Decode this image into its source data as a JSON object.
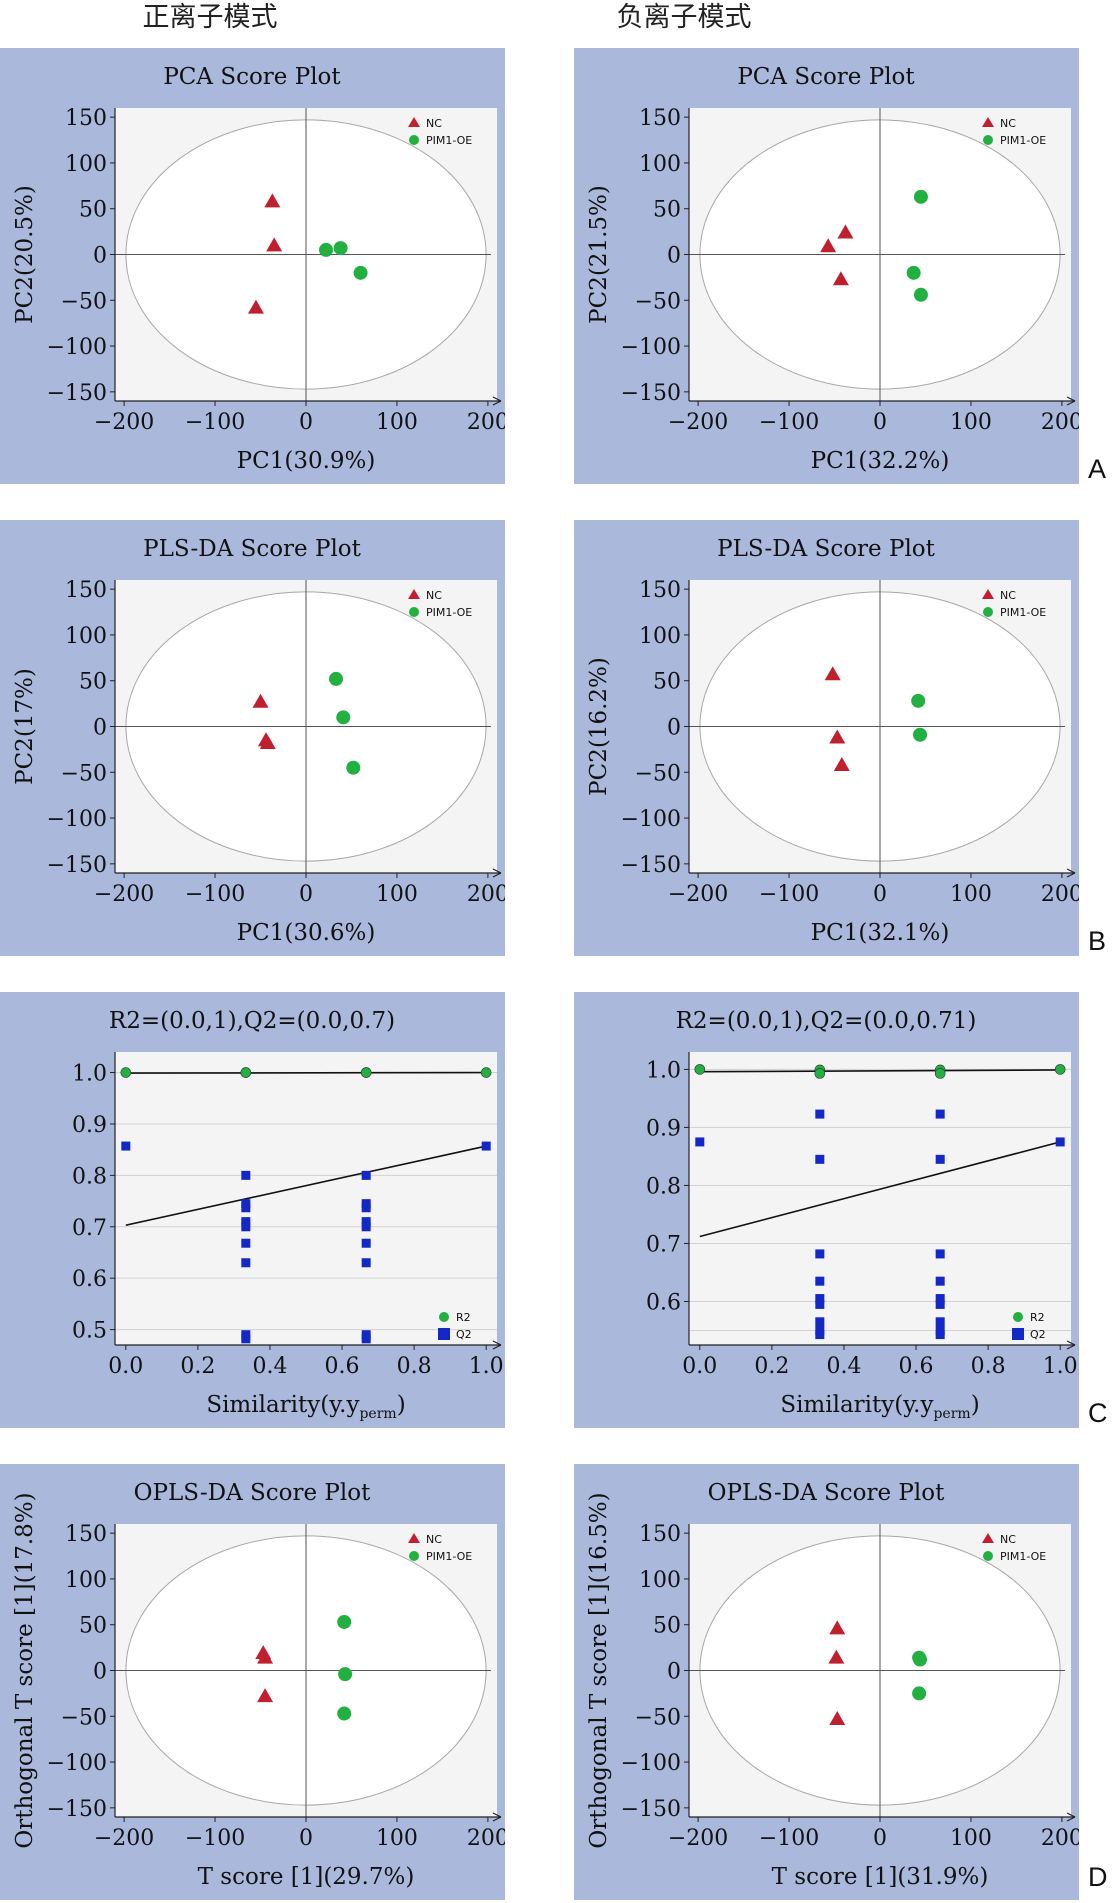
{
  "headers": {
    "left": "正离子模式",
    "right": "负离子模式"
  },
  "row_letters": [
    "A",
    "B",
    "C",
    "D"
  ],
  "colors": {
    "panel_bg": "#aab8dc",
    "plot_bg": "#f4f4f4",
    "nc": "#c0202e",
    "oe": "#22b040",
    "q2": "#1428c8"
  },
  "chart_data": [
    {
      "type": "scatter",
      "title": "PCA Score Plot",
      "xlabel": "PC1(30.9%)",
      "ylabel": "PC2(20.5%)",
      "xlim": [
        -210,
        210
      ],
      "ylim": [
        -160,
        160
      ],
      "xticks": [
        "−200",
        "−100",
        "0",
        "100",
        "200"
      ],
      "yticks": [
        "150",
        "100",
        "50",
        "0",
        "−50",
        "−100",
        "−150"
      ],
      "series": [
        {
          "name": "NC",
          "marker": "triangle",
          "points": [
            [
              -37,
              58
            ],
            [
              -35,
              10
            ],
            [
              -55,
              -58
            ]
          ]
        },
        {
          "name": "PIM1-OE",
          "marker": "circle",
          "points": [
            [
              22,
              5
            ],
            [
              38,
              7
            ],
            [
              60,
              -20
            ]
          ]
        }
      ]
    },
    {
      "type": "scatter",
      "title": "PCA Score Plot",
      "xlabel": "PC1(32.2%)",
      "ylabel": "PC2(21.5%)",
      "xlim": [
        -210,
        210
      ],
      "ylim": [
        -160,
        160
      ],
      "xticks": [
        "−200",
        "−100",
        "0",
        "100",
        "200"
      ],
      "yticks": [
        "150",
        "100",
        "50",
        "0",
        "−50",
        "−100",
        "−150"
      ],
      "series": [
        {
          "name": "NC",
          "marker": "triangle",
          "points": [
            [
              -38,
              24
            ],
            [
              -57,
              9
            ],
            [
              -43,
              -27
            ]
          ]
        },
        {
          "name": "PIM1-OE",
          "marker": "circle",
          "points": [
            [
              45,
              63
            ],
            [
              37,
              -20
            ],
            [
              45,
              -44
            ]
          ]
        }
      ]
    },
    {
      "type": "scatter",
      "title": "PLS-DA Score Plot",
      "xlabel": "PC1(30.6%)",
      "ylabel": "PC2(17%)",
      "xlim": [
        -210,
        210
      ],
      "ylim": [
        -160,
        160
      ],
      "xticks": [
        "−200",
        "−100",
        "0",
        "100",
        "200"
      ],
      "yticks": [
        "150",
        "100",
        "50",
        "0",
        "−50",
        "−100",
        "−150"
      ],
      "series": [
        {
          "name": "NC",
          "marker": "triangle",
          "points": [
            [
              -50,
              27
            ],
            [
              -44,
              -15
            ],
            [
              -42,
              -18
            ]
          ]
        },
        {
          "name": "PIM1-OE",
          "marker": "circle",
          "points": [
            [
              33,
              52
            ],
            [
              41,
              10
            ],
            [
              52,
              -45
            ]
          ]
        }
      ]
    },
    {
      "type": "scatter",
      "title": "PLS-DA Score Plot",
      "xlabel": "PC1(32.1%)",
      "ylabel": "PC2(16.2%)",
      "xlim": [
        -210,
        210
      ],
      "ylim": [
        -160,
        160
      ],
      "xticks": [
        "−200",
        "−100",
        "0",
        "100",
        "200"
      ],
      "yticks": [
        "150",
        "100",
        "50",
        "0",
        "−50",
        "−100",
        "−150"
      ],
      "series": [
        {
          "name": "NC",
          "marker": "triangle",
          "points": [
            [
              -52,
              57
            ],
            [
              -47,
              -12
            ],
            [
              -42,
              -42
            ]
          ]
        },
        {
          "name": "PIM1-OE",
          "marker": "circle",
          "points": [
            [
              42,
              28
            ],
            [
              44,
              -9
            ]
          ]
        }
      ]
    },
    {
      "type": "scatter",
      "title": "R2=(0.0,1),Q2=(0.0,0.7)",
      "xlabel": "Similarity(y.y",
      "xlabel_sub": "perm",
      "xlabel_end": ")",
      "xlim": [
        -0.03,
        1.03
      ],
      "ylim": [
        0.47,
        1.04
      ],
      "xticks": [
        "0.0",
        "0.2",
        "0.4",
        "0.6",
        "0.8",
        "1.0"
      ],
      "yticks": [
        "1.0",
        "0.9",
        "0.8",
        "0.7",
        "0.6",
        "0.5"
      ],
      "yticks_values": [
        1.0,
        0.9,
        0.8,
        0.7,
        0.6,
        0.5
      ],
      "gridlines": [
        1.0,
        0.9,
        0.8,
        0.7,
        0.6,
        0.5
      ],
      "series": [
        {
          "name": "R2",
          "marker": "circle",
          "points": [
            [
              0,
              1.0
            ],
            [
              0.333,
              1.0
            ],
            [
              0.333,
              1.0
            ],
            [
              0.667,
              1.0
            ],
            [
              0.667,
              1.0
            ],
            [
              1.0,
              1.0
            ]
          ]
        },
        {
          "name": "Q2",
          "marker": "square",
          "points": [
            [
              0,
              0.857
            ],
            [
              0.333,
              0.8
            ],
            [
              0.333,
              0.745
            ],
            [
              0.333,
              0.737
            ],
            [
              0.333,
              0.71
            ],
            [
              0.333,
              0.7
            ],
            [
              0.333,
              0.668
            ],
            [
              0.333,
              0.63
            ],
            [
              0.333,
              0.49
            ],
            [
              0.333,
              0.482
            ],
            [
              0.667,
              0.8
            ],
            [
              0.667,
              0.745
            ],
            [
              0.667,
              0.737
            ],
            [
              0.667,
              0.71
            ],
            [
              0.667,
              0.7
            ],
            [
              0.667,
              0.668
            ],
            [
              0.667,
              0.63
            ],
            [
              0.667,
              0.49
            ],
            [
              0.667,
              0.482
            ],
            [
              1.0,
              0.857
            ]
          ]
        }
      ],
      "regression": [
        {
          "from": [
            0,
            0.999
          ],
          "to": [
            1.0,
            1.0
          ]
        },
        {
          "from": [
            0,
            0.703
          ],
          "to": [
            1.0,
            0.857
          ]
        }
      ]
    },
    {
      "type": "scatter",
      "title": "R2=(0.0,1),Q2=(0.0,0.71)",
      "xlabel": "Similarity(y.y",
      "xlabel_sub": "perm",
      "xlabel_end": ")",
      "xlim": [
        -0.03,
        1.03
      ],
      "ylim": [
        0.525,
        1.03
      ],
      "xticks": [
        "0.0",
        "0.2",
        "0.4",
        "0.6",
        "0.8",
        "1.0"
      ],
      "yticks": [
        "1.0",
        "0.9",
        "0.8",
        "0.7",
        "0.6"
      ],
      "yticks_values": [
        1.0,
        0.9,
        0.8,
        0.7,
        0.6
      ],
      "gridlines": [
        1.0,
        0.9,
        0.8,
        0.7,
        0.6,
        0.55
      ],
      "series": [
        {
          "name": "R2",
          "marker": "circle",
          "points": [
            [
              0,
              1.0
            ],
            [
              0.333,
              0.999
            ],
            [
              0.333,
              0.993
            ],
            [
              0.667,
              0.999
            ],
            [
              0.667,
              0.993
            ],
            [
              1.0,
              1.0
            ]
          ]
        },
        {
          "name": "Q2",
          "marker": "square",
          "points": [
            [
              0,
              0.875
            ],
            [
              0.333,
              0.923
            ],
            [
              0.333,
              0.845
            ],
            [
              0.333,
              0.682
            ],
            [
              0.333,
              0.635
            ],
            [
              0.333,
              0.605
            ],
            [
              0.333,
              0.595
            ],
            [
              0.333,
              0.565
            ],
            [
              0.333,
              0.55
            ],
            [
              0.333,
              0.543
            ],
            [
              0.667,
              0.923
            ],
            [
              0.667,
              0.845
            ],
            [
              0.667,
              0.682
            ],
            [
              0.667,
              0.635
            ],
            [
              0.667,
              0.605
            ],
            [
              0.667,
              0.595
            ],
            [
              0.667,
              0.565
            ],
            [
              0.667,
              0.55
            ],
            [
              0.667,
              0.543
            ],
            [
              1.0,
              0.875
            ]
          ]
        }
      ],
      "regression": [
        {
          "from": [
            0,
            0.996
          ],
          "to": [
            1.0,
            0.999
          ]
        },
        {
          "from": [
            0,
            0.712
          ],
          "to": [
            1.0,
            0.875
          ]
        }
      ]
    },
    {
      "type": "scatter",
      "title": "OPLS-DA Score Plot",
      "xlabel": "T score [1](29.7%)",
      "ylabel": "Orthogonal T score [1](17.8%)",
      "xlim": [
        -210,
        210
      ],
      "ylim": [
        -160,
        160
      ],
      "xticks": [
        "−200",
        "−100",
        "0",
        "100",
        "200"
      ],
      "yticks": [
        "150",
        "100",
        "50",
        "0",
        "−50",
        "−100",
        "−150"
      ],
      "series": [
        {
          "name": "NC",
          "marker": "triangle",
          "points": [
            [
              -47,
              19
            ],
            [
              -45,
              14
            ],
            [
              -45,
              -28
            ]
          ]
        },
        {
          "name": "PIM1-OE",
          "marker": "circle",
          "points": [
            [
              42,
              53
            ],
            [
              43,
              -4
            ],
            [
              42,
              -47
            ]
          ]
        }
      ]
    },
    {
      "type": "scatter",
      "title": "OPLS-DA Score Plot",
      "xlabel": "T score [1](31.9%)",
      "ylabel": "Orthogonal T score [1](16.5%)",
      "xlim": [
        -210,
        210
      ],
      "ylim": [
        -160,
        160
      ],
      "xticks": [
        "−200",
        "−100",
        "0",
        "100",
        "200"
      ],
      "yticks": [
        "150",
        "100",
        "50",
        "0",
        "−50",
        "−100",
        "−150"
      ],
      "series": [
        {
          "name": "NC",
          "marker": "triangle",
          "points": [
            [
              -47,
              46
            ],
            [
              -48,
              14
            ],
            [
              -47,
              -53
            ]
          ]
        },
        {
          "name": "PIM1-OE",
          "marker": "circle",
          "points": [
            [
              43,
              14
            ],
            [
              44,
              12
            ],
            [
              43,
              -25
            ]
          ]
        }
      ]
    }
  ]
}
